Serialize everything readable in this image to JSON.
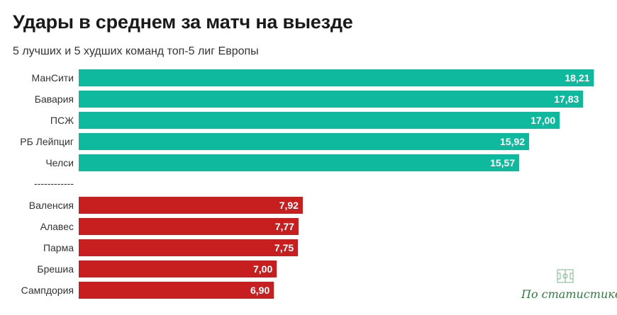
{
  "title": "Удары в среднем за матч на выезде",
  "subtitle": "5 лучших и 5 худших команд топ-5 лиг Европы",
  "logo": {
    "text": "По статистике",
    "icon": "soccer-field-icon",
    "color": "#2e7d3e"
  },
  "chart_data": {
    "type": "bar",
    "orientation": "horizontal",
    "title": "Удары в среднем за матч на выезде",
    "subtitle": "5 лучших и 5 худших команд топ-5 лиг Европы",
    "separator_label": "------------",
    "groups": [
      {
        "color": "#0fb99d",
        "categories": [
          "МанСити",
          "Бавария",
          "ПСЖ",
          "РБ Лейпциг",
          "Челси"
        ],
        "values": [
          18.21,
          17.83,
          17.0,
          15.92,
          15.57
        ],
        "labels": [
          "18,21",
          "17,83",
          "17,00",
          "15,92",
          "15,57"
        ]
      },
      {
        "color": "#c71f1f",
        "categories": [
          "Валенсия",
          "Алавес",
          "Парма",
          "Брешиа",
          "Сампдория"
        ],
        "values": [
          7.92,
          7.77,
          7.75,
          7.0,
          6.9
        ],
        "labels": [
          "7,92",
          "7,77",
          "7,75",
          "7,00",
          "6,90"
        ]
      }
    ],
    "xlim": [
      0,
      18.6
    ],
    "grid": false,
    "axis_visible": false
  }
}
